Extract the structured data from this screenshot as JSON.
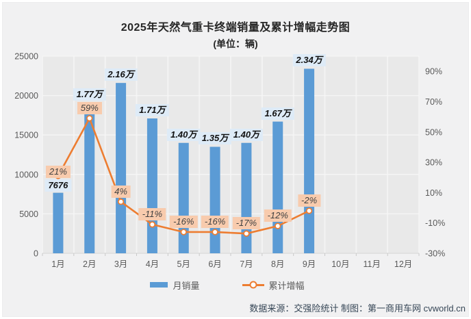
{
  "page": {
    "background": "#f1f1f2"
  },
  "title": {
    "text": "2025年天然气重卡终端销量及累计增幅走势图",
    "unit_line": "(单位：辆)"
  },
  "legend": {
    "items": [
      {
        "label": "月销量",
        "type": "bar",
        "color": "#5b9bd5"
      },
      {
        "label": "累计增幅",
        "type": "line",
        "color": "#ed7d31"
      }
    ]
  },
  "footer": {
    "credit": "数据来源：交强险统计 制图：第一商用车网 cvworld.cn"
  },
  "chart_data": {
    "type": "bar",
    "subtype": "combo-bar-line",
    "title": "2025年天然气重卡终端销量及累计增幅走势图",
    "subtitle": "(单位：辆)",
    "categories": [
      "1月",
      "2月",
      "3月",
      "4月",
      "5月",
      "6月",
      "7月",
      "8月",
      "9月",
      "10月",
      "11月",
      "12月"
    ],
    "series": [
      {
        "name": "月销量",
        "chart": "bar",
        "axis": "left",
        "color": "#5b9bd5",
        "values": [
          7676,
          17700,
          21600,
          17100,
          14000,
          13500,
          14000,
          16700,
          23400,
          null,
          null,
          null
        ],
        "data_labels": [
          "7676",
          "1.77万",
          "2.16万",
          "1.71万",
          "1.40万",
          "1.35万",
          "1.40万",
          "1.67万",
          "2.34万",
          null,
          null,
          null
        ]
      },
      {
        "name": "累计增幅",
        "chart": "line",
        "axis": "right",
        "color": "#ed7d31",
        "values": [
          21,
          59,
          4,
          -11,
          -16,
          -16,
          -17,
          -12,
          -2,
          null,
          null,
          null
        ],
        "data_labels": [
          "21%",
          "59%",
          "4%",
          "-11%",
          "-16%",
          "-16%",
          "-17%",
          "-12%",
          "-2%",
          null,
          null,
          null
        ]
      }
    ],
    "left_axis": {
      "min": 0,
      "max": 25000,
      "step": 5000,
      "tick_labels": [
        "0",
        "5000",
        "10000",
        "15000",
        "20000",
        "25000"
      ]
    },
    "right_axis": {
      "min": -30,
      "max": 100,
      "tick_values": [
        -30,
        -10,
        10,
        30,
        50,
        70,
        90
      ],
      "tick_labels": [
        "-30%",
        "-10%",
        "10%",
        "30%",
        "50%",
        "70%",
        "90%"
      ]
    },
    "grid": true,
    "legend_position": "bottom",
    "styles": {
      "plot_bg": "#e9e9e9",
      "bar_label_bg": "#deebf7",
      "pct_label_bg": "#f8cbad",
      "axis_text": "#595959",
      "gridline": "#f6f6f6"
    }
  }
}
